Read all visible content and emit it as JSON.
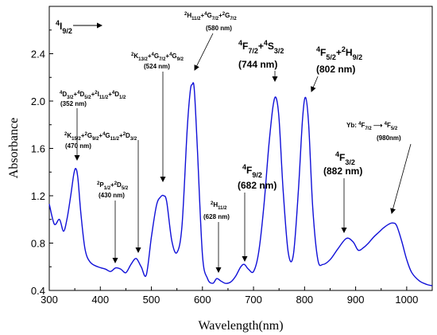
{
  "chart_data": {
    "type": "line",
    "xlabel": "Wavelength(nm)",
    "ylabel": "Absorbance",
    "xlim": [
      300,
      1050
    ],
    "ylim": [
      0.4,
      2.8
    ],
    "x_ticks": [
      300,
      400,
      500,
      600,
      700,
      800,
      900,
      1000
    ],
    "x_tick_labels": [
      "300",
      "400",
      "500",
      "600",
      "700",
      "800",
      "900",
      "1000"
    ],
    "y_ticks": [
      0.4,
      0.8,
      1.2,
      1.6,
      2.0,
      2.4
    ],
    "y_tick_labels": [
      "0.4",
      "0.8",
      "1.2",
      "1.6",
      "2.0",
      "2.4"
    ],
    "line_color": "#1010d8",
    "series": [
      {
        "x": [
          300,
          310,
          320,
          328,
          335,
          342,
          348,
          352,
          356,
          362,
          370,
          380,
          395,
          410,
          420,
          430,
          440,
          450,
          460,
          470,
          480,
          490,
          500,
          510,
          518,
          524,
          530,
          540,
          550,
          560,
          570,
          576,
          580,
          584,
          590,
          600,
          610,
          620,
          628,
          636,
          645,
          655,
          665,
          675,
          682,
          690,
          700,
          710,
          720,
          730,
          738,
          744,
          750,
          758,
          768,
          778,
          788,
          796,
          802,
          808,
          816,
          826,
          836,
          850,
          865,
          882,
          895,
          905,
          915,
          925,
          935,
          945,
          955,
          965,
          972,
          980,
          990,
          1000,
          1010,
          1025,
          1040,
          1050
        ],
        "y": [
          1.13,
          0.96,
          1.0,
          0.9,
          1.01,
          1.2,
          1.38,
          1.43,
          1.35,
          1.05,
          0.75,
          0.64,
          0.6,
          0.58,
          0.56,
          0.59,
          0.58,
          0.55,
          0.62,
          0.67,
          0.6,
          0.53,
          0.85,
          1.12,
          1.19,
          1.2,
          1.15,
          0.82,
          0.72,
          0.95,
          1.75,
          2.08,
          2.14,
          2.1,
          1.6,
          0.7,
          0.5,
          0.46,
          0.5,
          0.48,
          0.46,
          0.47,
          0.52,
          0.6,
          0.62,
          0.58,
          0.56,
          0.72,
          1.1,
          1.62,
          1.95,
          2.03,
          1.85,
          1.25,
          0.72,
          0.7,
          1.25,
          1.85,
          2.03,
          1.8,
          1.1,
          0.66,
          0.62,
          0.66,
          0.75,
          0.84,
          0.81,
          0.74,
          0.76,
          0.8,
          0.85,
          0.89,
          0.93,
          0.96,
          0.97,
          0.95,
          0.82,
          0.66,
          0.55,
          0.48,
          0.45,
          0.44
        ]
      }
    ],
    "annotations": [
      {
        "id": "i9",
        "text": "4I9/2"
      },
      {
        "id": "d32",
        "text": "4D3/2+4D5/2+2I11/2+4D1/2",
        "wl": "(352 nm)"
      },
      {
        "id": "k152",
        "text": "2K15/2+2G9/2+4G11/2+2D3/2",
        "wl": "(470 nm)"
      },
      {
        "id": "p12",
        "text": "2P1/2+2D5/2",
        "wl": "(430 nm)"
      },
      {
        "id": "k132",
        "text": "2K13/2+4G7/2+4G9/2",
        "wl": "(524 nm)"
      },
      {
        "id": "h112a",
        "text": "2H11/2+4G7/2+2G7/2",
        "wl": "(580 nm)"
      },
      {
        "id": "h112b",
        "text": "2H11/2",
        "wl": "(628 nm)"
      },
      {
        "id": "f92",
        "text": "4F9/2",
        "wl": "(682 nm)"
      },
      {
        "id": "f72",
        "text": "4F7/2+4S3/2",
        "wl": "(744 nm)"
      },
      {
        "id": "f52",
        "text": "4F5/2+2H9/2",
        "wl": "(802 nm)"
      },
      {
        "id": "f32",
        "text": "4F3/2",
        "wl": "(882 nm)"
      },
      {
        "id": "yb",
        "text": "Yb: 4F7/2 → 4F5/2",
        "wl": "(980nm)"
      }
    ]
  }
}
